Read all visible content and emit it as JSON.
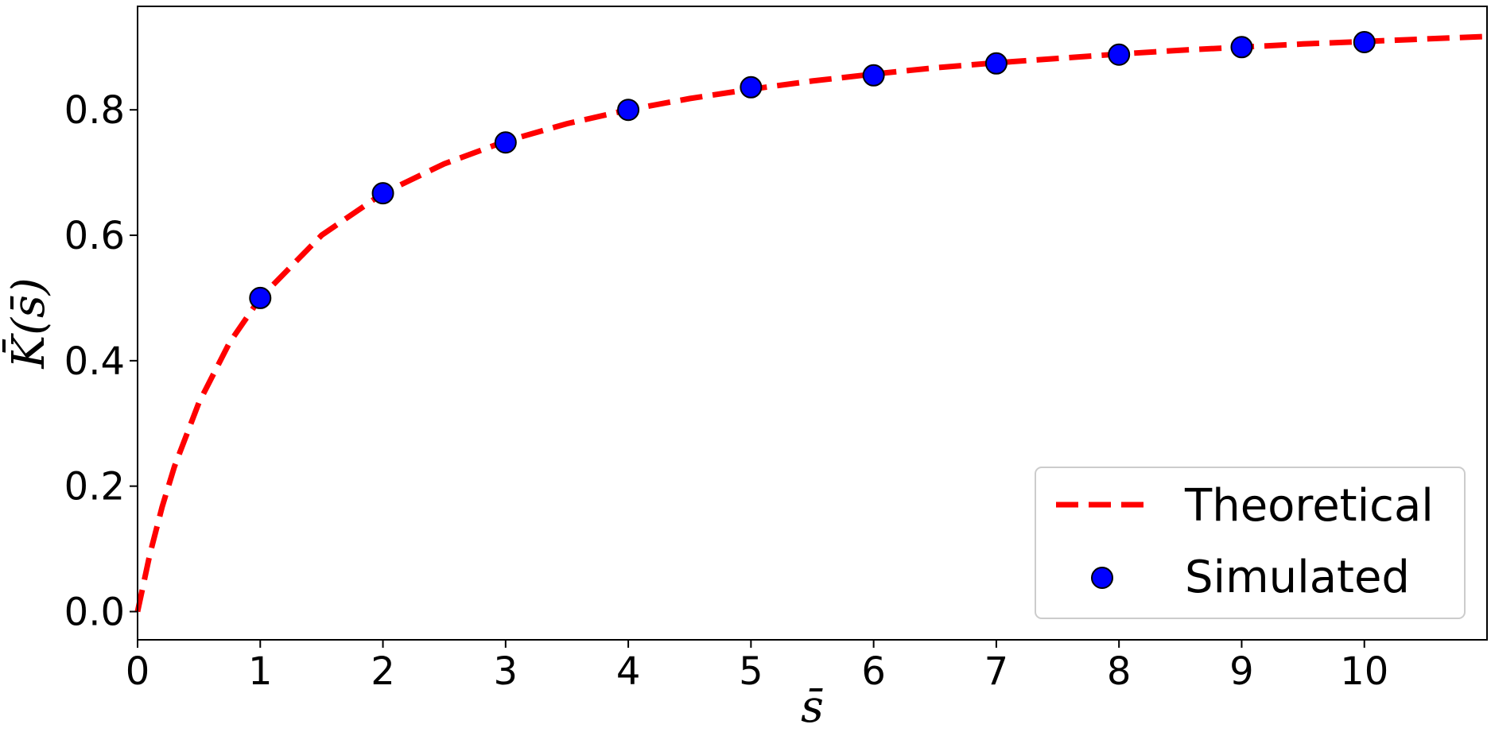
{
  "chart_data": {
    "type": "line",
    "xlabel": "s̄",
    "ylabel": "K̄(s̄)",
    "xlim": [
      0,
      11
    ],
    "ylim": [
      -0.045,
      0.965
    ],
    "x_ticks": [
      0,
      1,
      2,
      3,
      4,
      5,
      6,
      7,
      8,
      9,
      10
    ],
    "x_tick_labels": [
      "0",
      "1",
      "2",
      "3",
      "4",
      "5",
      "6",
      "7",
      "8",
      "9",
      "10"
    ],
    "y_ticks": [
      0.0,
      0.2,
      0.4,
      0.6,
      0.8
    ],
    "y_tick_labels": [
      "0.0",
      "0.2",
      "0.4",
      "0.6",
      "0.8"
    ],
    "grid": false,
    "legend_position": "lower-right",
    "series": [
      {
        "name": "Theoretical",
        "kind": "dashed-line",
        "color": "#ff0000",
        "x": [
          0,
          0.1,
          0.2,
          0.3,
          0.5,
          0.75,
          1,
          1.5,
          2,
          2.5,
          3,
          3.5,
          4,
          4.5,
          5,
          5.5,
          6,
          6.5,
          7,
          7.5,
          8,
          8.5,
          9,
          9.5,
          10,
          10.5,
          11
        ],
        "y": [
          0,
          0.091,
          0.167,
          0.231,
          0.333,
          0.429,
          0.5,
          0.6,
          0.667,
          0.714,
          0.75,
          0.778,
          0.8,
          0.818,
          0.833,
          0.846,
          0.857,
          0.867,
          0.875,
          0.882,
          0.889,
          0.895,
          0.9,
          0.905,
          0.909,
          0.913,
          0.917
        ]
      },
      {
        "name": "Simulated",
        "kind": "markers",
        "color": "#0000ff",
        "x": [
          1,
          2,
          3,
          4,
          5,
          6,
          7,
          8,
          9,
          10
        ],
        "y": [
          0.5,
          0.667,
          0.748,
          0.8,
          0.836,
          0.855,
          0.874,
          0.888,
          0.9,
          0.908
        ]
      }
    ]
  }
}
